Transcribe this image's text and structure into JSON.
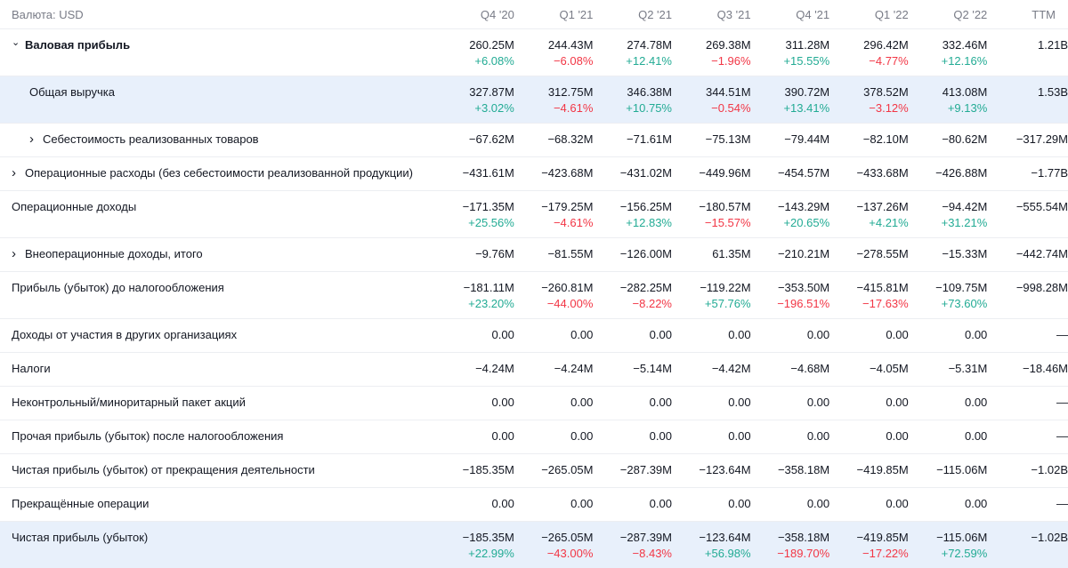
{
  "header": {
    "currency_label": "Валюта: USD",
    "periods": [
      "Q4 '20",
      "Q1 '21",
      "Q2 '21",
      "Q3 '21",
      "Q4 '21",
      "Q1 '22",
      "Q2 '22",
      "TTM"
    ]
  },
  "rows": [
    {
      "label": "Валовая прибыль",
      "expand": "down",
      "bold": true,
      "values": [
        "260.25M",
        "244.43M",
        "274.78M",
        "269.38M",
        "311.28M",
        "296.42M",
        "332.46M",
        "1.21B"
      ],
      "changes": [
        "+6.08%",
        "−6.08%",
        "+12.41%",
        "−1.96%",
        "+15.55%",
        "−4.77%",
        "+12.16%",
        ""
      ]
    },
    {
      "label": "Общая выручка",
      "indent": true,
      "highlight": true,
      "values": [
        "327.87M",
        "312.75M",
        "346.38M",
        "344.51M",
        "390.72M",
        "378.52M",
        "413.08M",
        "1.53B"
      ],
      "changes": [
        "+3.02%",
        "−4.61%",
        "+10.75%",
        "−0.54%",
        "+13.41%",
        "−3.12%",
        "+9.13%",
        ""
      ]
    },
    {
      "label": "Себестоимость реализованных товаров",
      "expand": "right",
      "indent": true,
      "values": [
        "−67.62M",
        "−68.32M",
        "−71.61M",
        "−75.13M",
        "−79.44M",
        "−82.10M",
        "−80.62M",
        "−317.29M"
      ]
    },
    {
      "label": "Операционные расходы (без себестоимости реализованной продукции)",
      "expand": "right",
      "values": [
        "−431.61M",
        "−423.68M",
        "−431.02M",
        "−449.96M",
        "−454.57M",
        "−433.68M",
        "−426.88M",
        "−1.77B"
      ]
    },
    {
      "label": "Операционные доходы",
      "values": [
        "−171.35M",
        "−179.25M",
        "−156.25M",
        "−180.57M",
        "−143.29M",
        "−137.26M",
        "−94.42M",
        "−555.54M"
      ],
      "changes": [
        "+25.56%",
        "−4.61%",
        "+12.83%",
        "−15.57%",
        "+20.65%",
        "+4.21%",
        "+31.21%",
        ""
      ]
    },
    {
      "label": "Внеоперационные доходы, итого",
      "expand": "right",
      "values": [
        "−9.76M",
        "−81.55M",
        "−126.00M",
        "61.35M",
        "−210.21M",
        "−278.55M",
        "−15.33M",
        "−442.74M"
      ]
    },
    {
      "label": "Прибыль (убыток) до налогообложения",
      "values": [
        "−181.11M",
        "−260.81M",
        "−282.25M",
        "−119.22M",
        "−353.50M",
        "−415.81M",
        "−109.75M",
        "−998.28M"
      ],
      "changes": [
        "+23.20%",
        "−44.00%",
        "−8.22%",
        "+57.76%",
        "−196.51%",
        "−17.63%",
        "+73.60%",
        ""
      ]
    },
    {
      "label": "Доходы от участия в других организациях",
      "values": [
        "0.00",
        "0.00",
        "0.00",
        "0.00",
        "0.00",
        "0.00",
        "0.00",
        "—"
      ]
    },
    {
      "label": "Налоги",
      "values": [
        "−4.24M",
        "−4.24M",
        "−5.14M",
        "−4.42M",
        "−4.68M",
        "−4.05M",
        "−5.31M",
        "−18.46M"
      ]
    },
    {
      "label": "Неконтрольный/миноритарный пакет акций",
      "values": [
        "0.00",
        "0.00",
        "0.00",
        "0.00",
        "0.00",
        "0.00",
        "0.00",
        "—"
      ]
    },
    {
      "label": "Прочая прибыль (убыток) после налогообложения",
      "values": [
        "0.00",
        "0.00",
        "0.00",
        "0.00",
        "0.00",
        "0.00",
        "0.00",
        "—"
      ]
    },
    {
      "label": "Чистая прибыль (убыток) от прекращения деятельности",
      "values": [
        "−185.35M",
        "−265.05M",
        "−287.39M",
        "−123.64M",
        "−358.18M",
        "−419.85M",
        "−115.06M",
        "−1.02B"
      ]
    },
    {
      "label": "Прекращённые операции",
      "values": [
        "0.00",
        "0.00",
        "0.00",
        "0.00",
        "0.00",
        "0.00",
        "0.00",
        "—"
      ]
    },
    {
      "label": "Чистая прибыль (убыток)",
      "highlight": true,
      "values": [
        "−185.35M",
        "−265.05M",
        "−287.39M",
        "−123.64M",
        "−358.18M",
        "−419.85M",
        "−115.06M",
        "−1.02B"
      ],
      "changes": [
        "+22.99%",
        "−43.00%",
        "−8.43%",
        "+56.98%",
        "−189.70%",
        "−17.22%",
        "+72.59%",
        ""
      ]
    }
  ],
  "colors": {
    "positive": "#22ab94",
    "negative": "#f23645",
    "highlight": "#e8f0fb"
  },
  "icons": {
    "expand_down": "chevron-down-icon",
    "expand_right": "chevron-right-icon"
  }
}
